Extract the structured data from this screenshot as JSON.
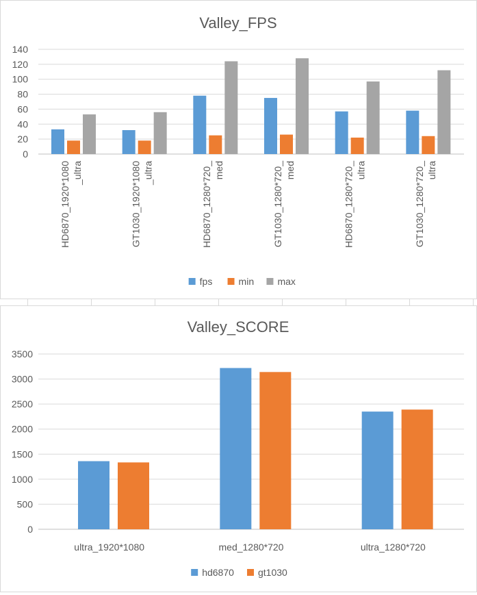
{
  "chart_data": [
    {
      "type": "bar",
      "title": "Valley_FPS",
      "categories": [
        [
          "HD6870_1920*1080",
          "_ultra"
        ],
        [
          "GT1030_1920*1080",
          "_ultra"
        ],
        [
          "HD6870_1280*720_",
          "med"
        ],
        [
          "GT1030_1280*720_",
          "med"
        ],
        [
          "HD6870_1280*720_",
          "ultra"
        ],
        [
          "GT1030_1280*720_",
          "ultra"
        ]
      ],
      "series": [
        {
          "name": "fps",
          "color": "#5b9bd5",
          "values": [
            33,
            32,
            78,
            75,
            57,
            58
          ]
        },
        {
          "name": "min",
          "color": "#ed7d31",
          "values": [
            18,
            18,
            25,
            26,
            22,
            24
          ]
        },
        {
          "name": "max",
          "color": "#a5a5a5",
          "values": [
            53,
            56,
            124,
            128,
            97,
            112
          ]
        }
      ],
      "ylim": [
        0,
        140
      ],
      "yticks": [
        0,
        20,
        40,
        60,
        80,
        100,
        120,
        140
      ],
      "grid": true,
      "legend": "bottom",
      "xlabel_rotation": "vertical"
    },
    {
      "type": "bar",
      "title": "Valley_SCORE",
      "categories": [
        "ultra_1920*1080",
        "med_1280*720",
        "ultra_1280*720"
      ],
      "series": [
        {
          "name": "hd6870",
          "color": "#5b9bd5",
          "values": [
            1360,
            3220,
            2350
          ]
        },
        {
          "name": "gt1030",
          "color": "#ed7d31",
          "values": [
            1335,
            3140,
            2390
          ]
        }
      ],
      "ylim": [
        0,
        3500
      ],
      "yticks": [
        0,
        500,
        1000,
        1500,
        2000,
        2500,
        3000,
        3500
      ],
      "grid": true,
      "legend": "bottom"
    }
  ],
  "style": {
    "grid_color": "#d9d9d9",
    "text_color": "#595959",
    "axis_color": "#bfbfbf"
  }
}
